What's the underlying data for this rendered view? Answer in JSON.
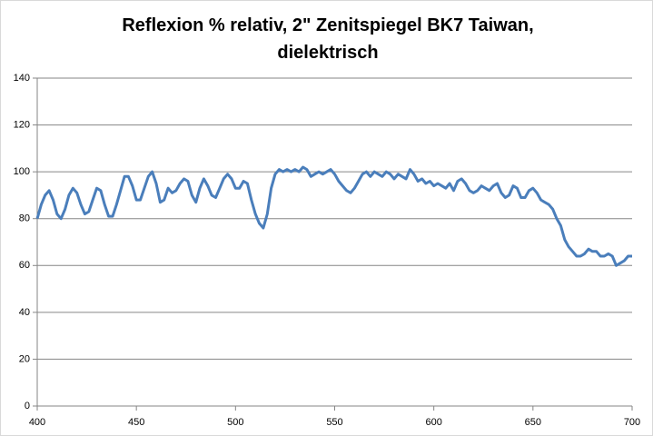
{
  "chart_data": {
    "type": "line",
    "title": "Reflexion % relativ, 2\" Zenitspiegel BK7 Taiwan, dielektrisch",
    "x": [
      400,
      402,
      404,
      406,
      408,
      410,
      412,
      414,
      416,
      418,
      420,
      422,
      424,
      426,
      428,
      430,
      432,
      434,
      436,
      438,
      440,
      442,
      444,
      446,
      448,
      450,
      452,
      454,
      456,
      458,
      460,
      462,
      464,
      466,
      468,
      470,
      472,
      474,
      476,
      478,
      480,
      482,
      484,
      486,
      488,
      490,
      492,
      494,
      496,
      498,
      500,
      502,
      504,
      506,
      508,
      510,
      512,
      514,
      516,
      518,
      520,
      522,
      524,
      526,
      528,
      530,
      532,
      534,
      536,
      538,
      540,
      542,
      544,
      546,
      548,
      550,
      552,
      554,
      556,
      558,
      560,
      562,
      564,
      566,
      568,
      570,
      572,
      574,
      576,
      578,
      580,
      582,
      584,
      586,
      588,
      590,
      592,
      594,
      596,
      598,
      600,
      602,
      604,
      606,
      608,
      610,
      612,
      614,
      616,
      618,
      620,
      622,
      624,
      626,
      628,
      630,
      632,
      634,
      636,
      638,
      640,
      642,
      644,
      646,
      648,
      650,
      652,
      654,
      656,
      658,
      660,
      662,
      664,
      666,
      668,
      670,
      672,
      674,
      676,
      678,
      680,
      682,
      684,
      686,
      688,
      690,
      692,
      694,
      696,
      698,
      700
    ],
    "series": [
      {
        "color": "#4a7ebb",
        "values": [
          80,
          86,
          90,
          92,
          88,
          82,
          80,
          84,
          90,
          93,
          91,
          86,
          82,
          83,
          88,
          93,
          92,
          86,
          81,
          81,
          86,
          92,
          98,
          98,
          94,
          88,
          88,
          93,
          98,
          100,
          95,
          87,
          88,
          93,
          91,
          92,
          95,
          97,
          96,
          90,
          87,
          93,
          97,
          94,
          90,
          89,
          93,
          97,
          99,
          97,
          93,
          93,
          96,
          95,
          88,
          82,
          78,
          76,
          82,
          93,
          99,
          101,
          100,
          101,
          100,
          101,
          100,
          102,
          101,
          98,
          99,
          100,
          99,
          100,
          101,
          99,
          96,
          94,
          92,
          91,
          93,
          96,
          99,
          100,
          98,
          100,
          99,
          98,
          100,
          99,
          97,
          99,
          98,
          97,
          101,
          99,
          96,
          97,
          95,
          96,
          94,
          95,
          94,
          93,
          95,
          92,
          96,
          97,
          95,
          92,
          91,
          92,
          94,
          93,
          92,
          94,
          95,
          91,
          89,
          90,
          94,
          93,
          89,
          89,
          92,
          93,
          91,
          88,
          87,
          86,
          84,
          80,
          77,
          71,
          68,
          66,
          64,
          64,
          65,
          67,
          66,
          66,
          64,
          64,
          65,
          64,
          60,
          61,
          62,
          64,
          64
        ]
      }
    ],
    "xlim": [
      400,
      700
    ],
    "xticks": [
      400,
      450,
      500,
      550,
      600,
      650,
      700
    ],
    "ylim": [
      0,
      140
    ],
    "yticks": [
      0,
      20,
      40,
      60,
      80,
      100,
      120,
      140
    ],
    "grid": true
  }
}
